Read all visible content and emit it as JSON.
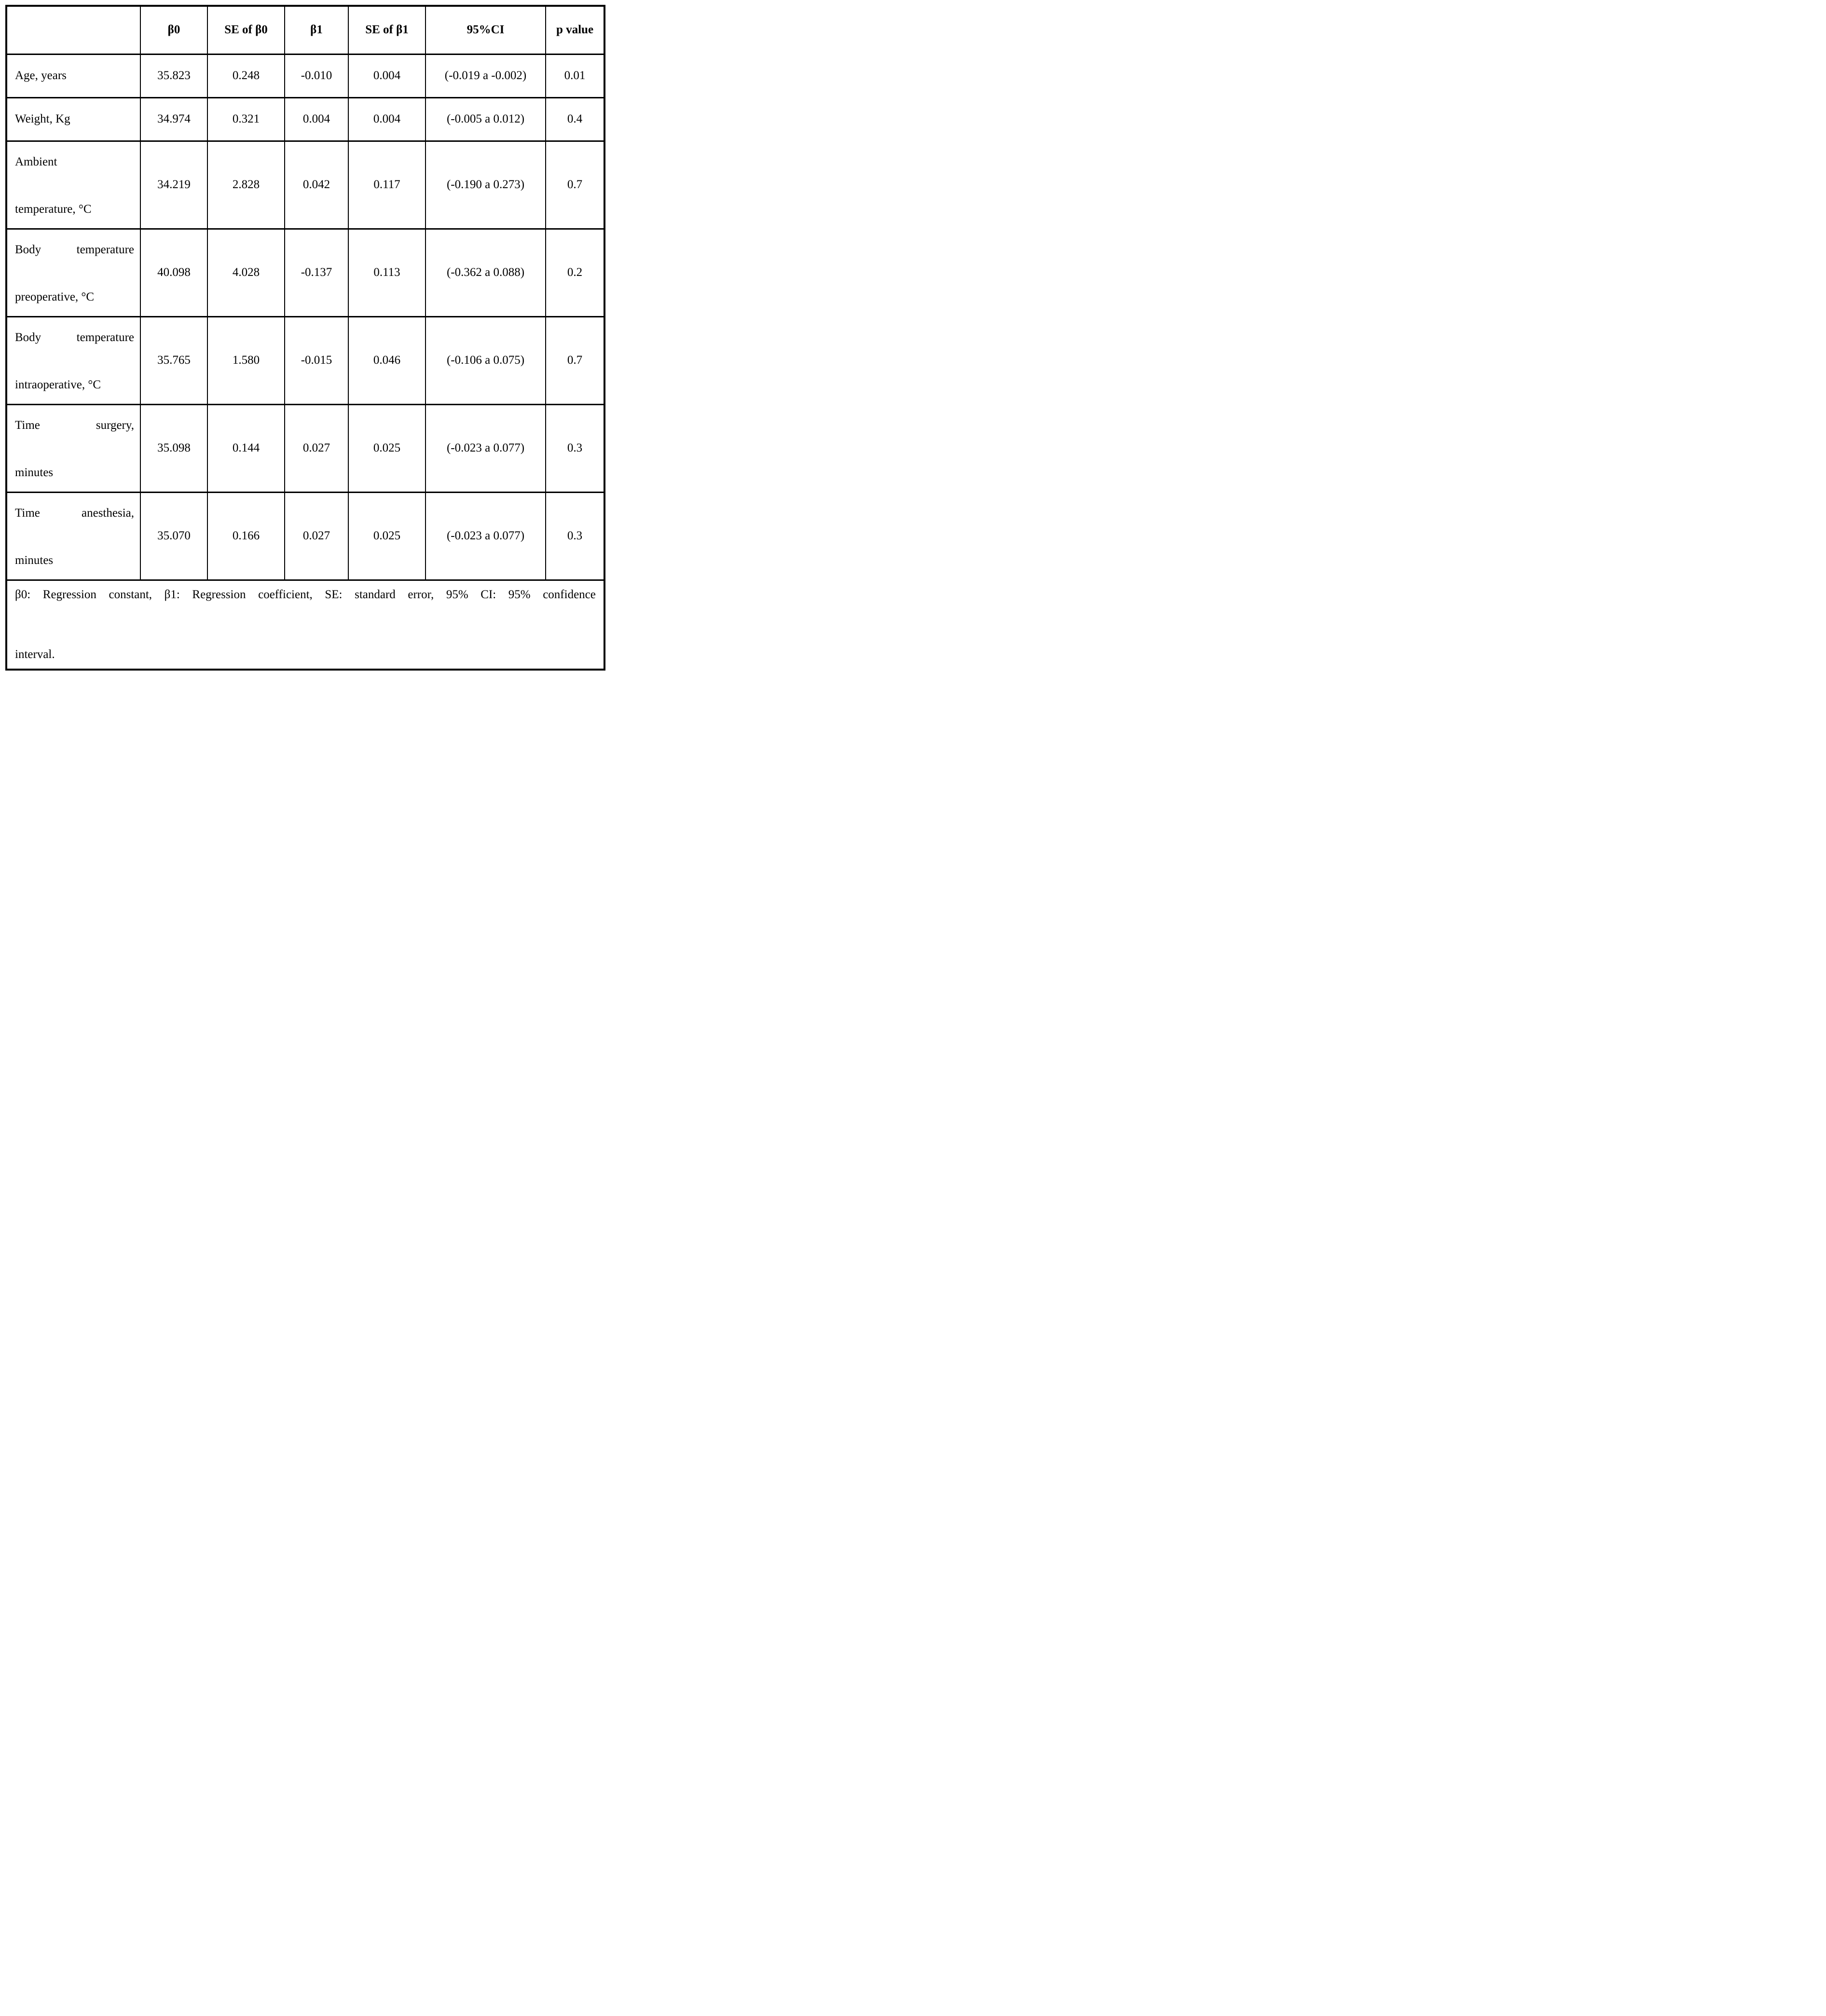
{
  "colors": {
    "background": "#ffffff",
    "text": "#000000",
    "border": "#000000"
  },
  "table": {
    "columns": [
      "",
      "β0",
      "SE of β0",
      "β1",
      "SE of β1",
      "95%CI",
      "p value"
    ],
    "rows": [
      {
        "label": "Age, years",
        "label_lines": [
          "Age, years"
        ],
        "values": [
          "35.823",
          "0.248",
          "-0.010",
          "0.004",
          "(-0.019 a -0.002)",
          "0.01"
        ]
      },
      {
        "label": "Weight, Kg",
        "label_lines": [
          "Weight, Kg"
        ],
        "values": [
          "34.974",
          "0.321",
          "0.004",
          "0.004",
          "(-0.005 a 0.012)",
          "0.4"
        ]
      },
      {
        "label": "Ambient temperature, °C",
        "label_lines": [
          "Ambient",
          "temperature, °C"
        ],
        "values": [
          "34.219",
          "2.828",
          "0.042",
          "0.117",
          "(-0.190 a 0.273)",
          "0.7"
        ]
      },
      {
        "label": "Body temperature preoperative, °C",
        "label_lines": [
          "Body temperature",
          "preoperative, °C"
        ],
        "values": [
          "40.098",
          "4.028",
          "-0.137",
          "0.113",
          "(-0.362 a 0.088)",
          "0.2"
        ]
      },
      {
        "label": "Body temperature intraoperative, °C",
        "label_lines": [
          "Body temperature",
          "intraoperative, °C"
        ],
        "values": [
          "35.765",
          "1.580",
          "-0.015",
          "0.046",
          "(-0.106 a 0.075)",
          "0.7"
        ]
      },
      {
        "label": "Time surgery, minutes",
        "label_lines": [
          "Time surgery,",
          "minutes"
        ],
        "values": [
          "35.098",
          "0.144",
          "0.027",
          "0.025",
          "(-0.023 a 0.077)",
          "0.3"
        ]
      },
      {
        "label": "Time anesthesia, minutes",
        "label_lines": [
          "Time anesthesia,",
          "minutes"
        ],
        "values": [
          "35.070",
          "0.166",
          "0.027",
          "0.025",
          "(-0.023 a 0.077)",
          "0.3"
        ]
      }
    ],
    "footnote": "β0: Regression constant, β1: Regression coefficient, SE: standard error, 95% CI: 95% confidence interval.",
    "footnote_lines": [
      "β0: Regression constant, β1: Regression coefficient, SE: standard error, 95% CI: 95% confidence",
      "interval."
    ]
  }
}
